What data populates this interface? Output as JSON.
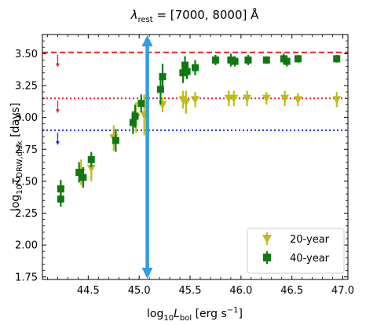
{
  "chart_data": {
    "type": "scatter",
    "title_prefix": "λ",
    "title_sub": "rest",
    "title_suffix": " = [7000,  8000] Å",
    "xlabel_prefix": "log",
    "xlabel_sub": "10",
    "xlabel_var": "L",
    "xlabel_var_sub": "bol",
    "xlabel_unit": " [erg s",
    "xlabel_unit_sup": "−1",
    "xlabel_unit_end": "]",
    "ylabel_prefix": "log",
    "ylabel_sub": "10",
    "ylabel_var": "τ",
    "ylabel_var_sub": "DRW,disk",
    "ylabel_unit": " [days]",
    "xlim": [
      44.05,
      47.05
    ],
    "ylim": [
      1.73,
      3.65
    ],
    "xticks": [
      44.5,
      45.0,
      45.5,
      46.0,
      46.5,
      47.0
    ],
    "xtick_labels": [
      "44.5",
      "45.0",
      "45.5",
      "46.0",
      "46.5",
      "47.0"
    ],
    "yticks": [
      1.75,
      2.0,
      2.25,
      2.5,
      2.75,
      3.0,
      3.25,
      3.5
    ],
    "ytick_labels": [
      "1.75",
      "2.00",
      "2.25",
      "2.50",
      "2.75",
      "3.00",
      "3.25",
      "3.50"
    ],
    "hlines": [
      {
        "y": 3.51,
        "color": "#e8222a",
        "style": "dashed"
      },
      {
        "y": 3.15,
        "color": "#e8222a",
        "style": "dotted"
      },
      {
        "y": 2.9,
        "color": "#1f2fd8",
        "style": "dotted"
      }
    ],
    "upper_limit_arrows": [
      {
        "x": 44.2,
        "y": 3.51,
        "color": "#e8222a"
      },
      {
        "x": 44.2,
        "y": 3.15,
        "color": "#e8222a"
      },
      {
        "x": 44.2,
        "y": 2.9,
        "color": "#1f2fd8"
      }
    ],
    "vline": {
      "x": 45.08,
      "y0": 1.73,
      "y1": 3.65,
      "color": "#2e9ee6"
    },
    "legend_position": "lower-right",
    "series": [
      {
        "name": "20-year",
        "marker": "triangle-down",
        "color": "#bcbc1a",
        "points": [
          {
            "x": 44.23,
            "y": 2.43,
            "err": 0.07
          },
          {
            "x": 44.43,
            "y": 2.57,
            "err": 0.1
          },
          {
            "x": 44.53,
            "y": 2.6,
            "err": 0.1
          },
          {
            "x": 44.75,
            "y": 2.84,
            "err": 0.1
          },
          {
            "x": 44.97,
            "y": 3.0,
            "err": 0.12
          },
          {
            "x": 45.05,
            "y": 3.02,
            "err": 0.16
          },
          {
            "x": 45.23,
            "y": 3.1,
            "err": 0.06
          },
          {
            "x": 45.43,
            "y": 3.14,
            "err": 0.07
          },
          {
            "x": 45.46,
            "y": 3.12,
            "err": 0.09
          },
          {
            "x": 45.55,
            "y": 3.14,
            "err": 0.06
          },
          {
            "x": 45.88,
            "y": 3.15,
            "err": 0.06
          },
          {
            "x": 45.93,
            "y": 3.15,
            "err": 0.06
          },
          {
            "x": 46.06,
            "y": 3.15,
            "err": 0.06
          },
          {
            "x": 46.25,
            "y": 3.15,
            "err": 0.05
          },
          {
            "x": 46.43,
            "y": 3.15,
            "err": 0.06
          },
          {
            "x": 46.56,
            "y": 3.14,
            "err": 0.05
          },
          {
            "x": 46.94,
            "y": 3.14,
            "err": 0.06
          }
        ]
      },
      {
        "name": "40-year",
        "marker": "square",
        "color": "#0f7a0f",
        "points": [
          {
            "x": 44.23,
            "y": 2.36,
            "err": 0.06
          },
          {
            "x": 44.23,
            "y": 2.44,
            "err": 0.07
          },
          {
            "x": 44.41,
            "y": 2.57,
            "err": 0.08
          },
          {
            "x": 44.45,
            "y": 2.53,
            "err": 0.08
          },
          {
            "x": 44.53,
            "y": 2.67,
            "err": 0.06
          },
          {
            "x": 44.77,
            "y": 2.82,
            "err": 0.09
          },
          {
            "x": 44.94,
            "y": 2.96,
            "err": 0.09
          },
          {
            "x": 44.96,
            "y": 3.01,
            "err": 0.09
          },
          {
            "x": 45.02,
            "y": 3.11,
            "err": 0.07
          },
          {
            "x": 45.21,
            "y": 3.22,
            "err": 0.12
          },
          {
            "x": 45.23,
            "y": 3.32,
            "err": 0.1
          },
          {
            "x": 45.43,
            "y": 3.35,
            "err": 0.08
          },
          {
            "x": 45.45,
            "y": 3.41,
            "err": 0.07
          },
          {
            "x": 45.47,
            "y": 3.36,
            "err": 0.06
          },
          {
            "x": 45.55,
            "y": 3.39,
            "err": 0.06
          },
          {
            "x": 45.75,
            "y": 3.45,
            "err": 0.04
          },
          {
            "x": 45.9,
            "y": 3.45,
            "err": 0.05
          },
          {
            "x": 45.94,
            "y": 3.44,
            "err": 0.04
          },
          {
            "x": 46.07,
            "y": 3.45,
            "err": 0.04
          },
          {
            "x": 46.25,
            "y": 3.45,
            "err": 0.03
          },
          {
            "x": 46.42,
            "y": 3.46,
            "err": 0.04
          },
          {
            "x": 46.45,
            "y": 3.44,
            "err": 0.04
          },
          {
            "x": 46.56,
            "y": 3.46,
            "err": 0.03
          },
          {
            "x": 46.94,
            "y": 3.46,
            "err": 0.03
          }
        ]
      }
    ]
  }
}
